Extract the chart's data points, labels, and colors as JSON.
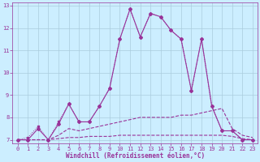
{
  "xlabel": "Windchill (Refroidissement éolien,°C)",
  "x": [
    0,
    1,
    2,
    3,
    4,
    5,
    6,
    7,
    8,
    9,
    10,
    11,
    12,
    13,
    14,
    15,
    16,
    17,
    18,
    19,
    20,
    21,
    22,
    23
  ],
  "line_jagged": [
    7.0,
    7.1,
    7.6,
    7.0,
    7.8,
    8.6,
    7.8,
    7.8,
    8.5,
    9.3,
    11.5,
    12.85,
    11.6,
    12.65,
    12.5,
    11.9,
    11.5,
    9.2,
    11.5,
    8.5,
    7.4,
    7.4,
    7.0,
    7.0
  ],
  "line_smooth_high": [
    7.0,
    7.0,
    7.5,
    7.0,
    7.7,
    8.6,
    7.8,
    7.8,
    8.5,
    9.3,
    11.5,
    12.85,
    11.6,
    12.65,
    12.5,
    11.9,
    11.5,
    9.2,
    11.5,
    8.5,
    7.4,
    7.4,
    7.0,
    7.0
  ],
  "line_mid": [
    7.0,
    7.0,
    7.0,
    7.0,
    7.2,
    7.5,
    7.4,
    7.5,
    7.6,
    7.7,
    7.8,
    7.9,
    8.0,
    8.0,
    8.0,
    8.0,
    8.1,
    8.1,
    8.2,
    8.3,
    8.4,
    7.5,
    7.2,
    7.1
  ],
  "line_flat": [
    7.0,
    7.0,
    7.0,
    7.0,
    7.05,
    7.1,
    7.1,
    7.15,
    7.15,
    7.15,
    7.2,
    7.2,
    7.2,
    7.2,
    7.2,
    7.2,
    7.2,
    7.2,
    7.2,
    7.2,
    7.2,
    7.15,
    7.05,
    7.0
  ],
  "bg_color": "#cceeff",
  "grid_color": "#aaccdd",
  "line_color": "#993399",
  "ylim": [
    6.85,
    13.15
  ],
  "yticks": [
    7,
    8,
    9,
    10,
    11,
    12,
    13
  ],
  "xticks": [
    0,
    1,
    2,
    3,
    4,
    5,
    6,
    7,
    8,
    9,
    10,
    11,
    12,
    13,
    14,
    15,
    16,
    17,
    18,
    19,
    20,
    21,
    22,
    23
  ]
}
